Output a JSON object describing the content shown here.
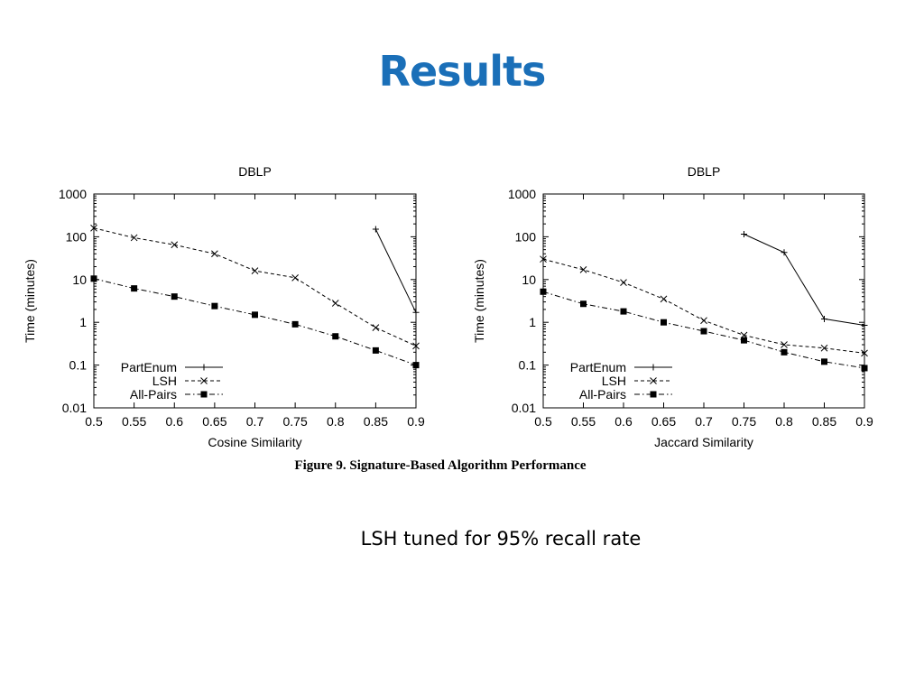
{
  "slide": {
    "title": "Results",
    "figure_caption": "Figure 9.  Signature-Based Algorithm Performance",
    "note": "LSH tuned for 95% recall rate"
  },
  "chart_data": [
    {
      "type": "line",
      "title": "DBLP",
      "xlabel": "Cosine Similarity",
      "ylabel": "Time (minutes)",
      "yscale": "log",
      "xlim": [
        0.5,
        0.9
      ],
      "ylim": [
        0.01,
        1000
      ],
      "xticks": [
        "0.5",
        "0.55",
        "0.6",
        "0.65",
        "0.7",
        "0.75",
        "0.8",
        "0.85",
        "0.9"
      ],
      "yticks": [
        "0.01",
        "0.1",
        "1",
        "10",
        "100",
        "1000"
      ],
      "legend_position": "bottom-left",
      "series": [
        {
          "name": "PartEnum",
          "marker": "plus",
          "dash": "solid",
          "x": [
            0.85,
            0.9
          ],
          "y": [
            150,
            1.7
          ]
        },
        {
          "name": "LSH",
          "marker": "cross",
          "dash": "dashed",
          "x": [
            0.5,
            0.55,
            0.6,
            0.65,
            0.7,
            0.75,
            0.8,
            0.85,
            0.9
          ],
          "y": [
            160,
            95,
            65,
            40,
            16,
            11,
            2.8,
            0.75,
            0.28
          ]
        },
        {
          "name": "All-Pairs",
          "marker": "square",
          "dash": "dashdot",
          "x": [
            0.5,
            0.55,
            0.6,
            0.65,
            0.7,
            0.75,
            0.8,
            0.85,
            0.9
          ],
          "y": [
            10.5,
            6.2,
            4,
            2.4,
            1.5,
            0.9,
            0.47,
            0.22,
            0.1
          ]
        }
      ]
    },
    {
      "type": "line",
      "title": "DBLP",
      "xlabel": "Jaccard Similarity",
      "ylabel": "Time (minutes)",
      "yscale": "log",
      "xlim": [
        0.5,
        0.9
      ],
      "ylim": [
        0.01,
        1000
      ],
      "xticks": [
        "0.5",
        "0.55",
        "0.6",
        "0.65",
        "0.7",
        "0.75",
        "0.8",
        "0.85",
        "0.9"
      ],
      "yticks": [
        "0.01",
        "0.1",
        "1",
        "10",
        "100",
        "1000"
      ],
      "legend_position": "bottom-left",
      "series": [
        {
          "name": "PartEnum",
          "marker": "plus",
          "dash": "solid",
          "x": [
            0.75,
            0.8,
            0.85,
            0.9
          ],
          "y": [
            115,
            43,
            1.2,
            0.85
          ]
        },
        {
          "name": "LSH",
          "marker": "cross",
          "dash": "dashed",
          "x": [
            0.5,
            0.55,
            0.6,
            0.65,
            0.7,
            0.75,
            0.8,
            0.85,
            0.9
          ],
          "y": [
            30,
            17,
            8.5,
            3.5,
            1.1,
            0.5,
            0.3,
            0.25,
            0.19
          ]
        },
        {
          "name": "All-Pairs",
          "marker": "square",
          "dash": "dashdot",
          "x": [
            0.5,
            0.55,
            0.6,
            0.65,
            0.7,
            0.75,
            0.8,
            0.85,
            0.9
          ],
          "y": [
            5.2,
            2.7,
            1.8,
            1.0,
            0.62,
            0.38,
            0.2,
            0.12,
            0.085
          ]
        }
      ]
    }
  ]
}
